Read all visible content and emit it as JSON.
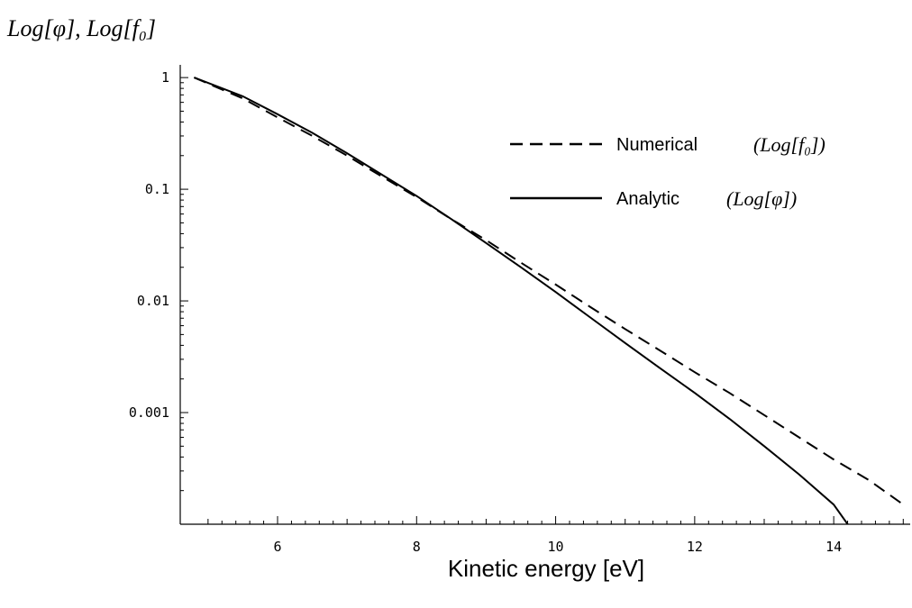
{
  "chart_data": {
    "type": "line",
    "xlabel": "Kinetic energy [eV]",
    "ylabel": "Log[φ], Log[f₀]",
    "yscale": "log",
    "xlim": [
      4.6,
      15.1
    ],
    "ylim": [
      0.0001,
      1.3
    ],
    "xticks": [
      6,
      8,
      10,
      12,
      14
    ],
    "yticks": [
      1,
      0.1,
      0.01,
      0.001
    ],
    "ytick_labels": [
      "1",
      "0.1",
      "0.01",
      "0.001"
    ],
    "grid": false,
    "legend_position": "top-right",
    "series": [
      {
        "name": "Numerical",
        "legend_math": "(Log[f₀])",
        "style": "dashed",
        "color": "#000000",
        "points": [
          [
            4.8,
            1.0
          ],
          [
            5.5,
            0.65
          ],
          [
            6.0,
            0.44
          ],
          [
            6.5,
            0.3
          ],
          [
            7.0,
            0.2
          ],
          [
            7.5,
            0.13
          ],
          [
            8.0,
            0.085
          ],
          [
            8.5,
            0.054
          ],
          [
            9.0,
            0.035
          ],
          [
            9.5,
            0.022
          ],
          [
            10.0,
            0.014
          ],
          [
            10.5,
            0.0088
          ],
          [
            11.0,
            0.0056
          ],
          [
            11.5,
            0.0036
          ],
          [
            12.0,
            0.0023
          ],
          [
            12.5,
            0.0015
          ],
          [
            13.0,
            0.00095
          ],
          [
            13.5,
            0.0006
          ],
          [
            14.0,
            0.00038
          ],
          [
            14.5,
            0.00025
          ],
          [
            15.0,
            0.00015
          ]
        ]
      },
      {
        "name": "Analytic",
        "legend_math": "(Log[φ])",
        "style": "solid",
        "color": "#000000",
        "points": [
          [
            4.8,
            1.0
          ],
          [
            5.5,
            0.68
          ],
          [
            6.0,
            0.47
          ],
          [
            6.5,
            0.32
          ],
          [
            7.0,
            0.21
          ],
          [
            7.5,
            0.135
          ],
          [
            8.0,
            0.087
          ],
          [
            8.5,
            0.054
          ],
          [
            9.0,
            0.033
          ],
          [
            9.5,
            0.02
          ],
          [
            10.0,
            0.012
          ],
          [
            10.5,
            0.0071
          ],
          [
            11.0,
            0.0042
          ],
          [
            11.5,
            0.0025
          ],
          [
            12.0,
            0.0015
          ],
          [
            12.5,
            0.00088
          ],
          [
            13.0,
            0.0005
          ],
          [
            13.5,
            0.00028
          ],
          [
            14.0,
            0.00015
          ],
          [
            14.2,
            0.0001
          ]
        ]
      }
    ]
  }
}
